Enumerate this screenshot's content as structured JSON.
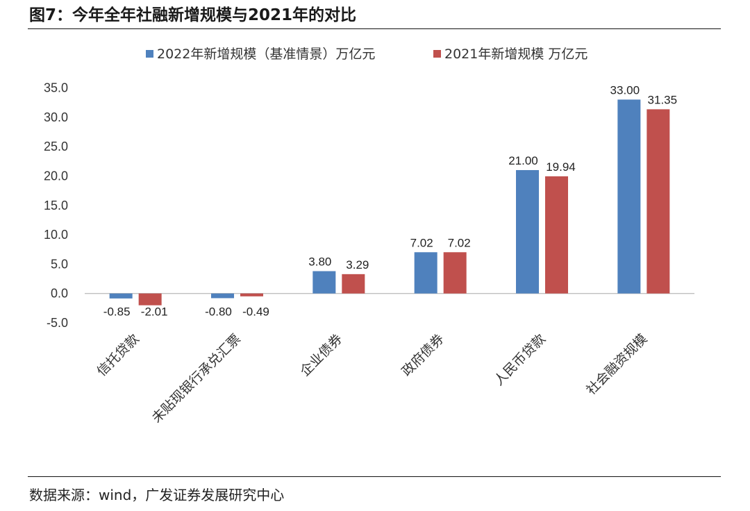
{
  "figure": {
    "title": "图7：今年全年社融新增规模与2021年的对比",
    "source": "数据来源：wind，广发证券发展研究中心"
  },
  "chart_data": {
    "type": "bar",
    "title": "图7：今年全年社融新增规模与2021年的对比",
    "xlabel": "",
    "ylabel": "",
    "ylim": [
      -5,
      35
    ],
    "yticks": [
      35,
      30,
      25,
      20,
      15,
      10,
      5,
      0,
      -5
    ],
    "tick_labels": [
      "35.0",
      "30.0",
      "25.0",
      "20.0",
      "15.0",
      "10.0",
      "5.0",
      "0.0",
      "-5.0"
    ],
    "grid": false,
    "legend_position": "top-center",
    "categories": [
      "信托贷款",
      "未贴现银行承兑汇票",
      "企业债券",
      "政府债券",
      "人民币贷款",
      "社会融资规模"
    ],
    "series": [
      {
        "name": "2022年新增规模（基准情景）万亿元",
        "color": "#4F81BD",
        "values": [
          -0.85,
          -0.8,
          3.8,
          7.02,
          21.0,
          33.0
        ],
        "labels": [
          "-0.85",
          "-0.80",
          "3.80",
          "7.02",
          "21.00",
          "33.00"
        ]
      },
      {
        "name": "2021年新增规模 万亿元",
        "color": "#C0504D",
        "values": [
          -2.01,
          -0.49,
          3.29,
          7.02,
          19.94,
          31.35
        ],
        "labels": [
          "-2.01",
          "-0.49",
          "3.29",
          "7.02",
          "19.94",
          "31.35"
        ]
      }
    ]
  }
}
